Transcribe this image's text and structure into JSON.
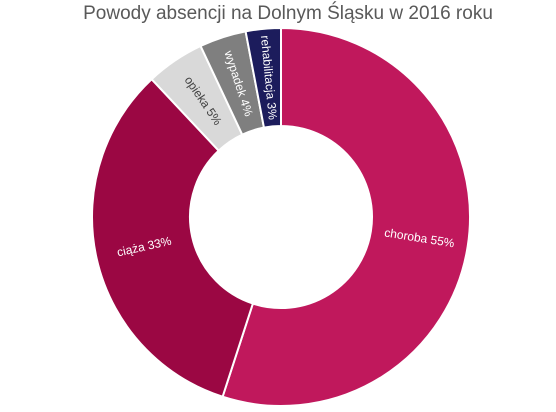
{
  "chart_data": {
    "type": "donut",
    "title": "Powody absencji na Dolnym Śląsku w 2016 roku",
    "categories": [
      "choroba",
      "ciąża",
      "opieka",
      "wypadek",
      "rehabilitacja"
    ],
    "values": [
      55,
      33,
      5,
      4,
      3
    ],
    "value_labels": [
      "55%",
      "33%",
      "5%",
      "4%",
      "3%"
    ],
    "colors": [
      "#c0185c",
      "#9b0743",
      "#d9d9d9",
      "#7f7f7f",
      "#1c1c5c"
    ]
  }
}
